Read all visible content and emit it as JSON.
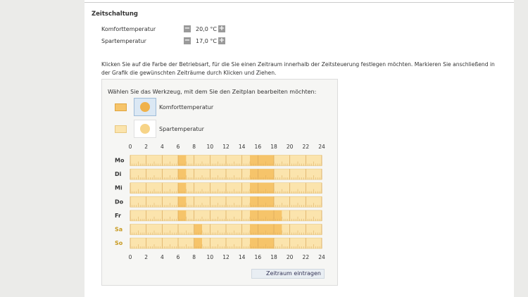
{
  "section_title": "Zeitschaltung",
  "settings": [
    {
      "label": "Komforttemperatur",
      "value": "20,0 °C"
    },
    {
      "label": "Spartemperatur",
      "value": "17,0 °C"
    }
  ],
  "instructions": "Klicken Sie auf die Farbe der Betriebsart, für die Sie einen Zeitraum innerhalb der Zeitsteuerung festlegen möchten. Markieren Sie anschließend in der Grafik die gewünschten Zeiträume durch Klicken und Ziehen.",
  "tool_prompt": "Wählen Sie das Werkzeug, mit dem Sie den Zeitplan bearbeiten möchten:",
  "tools": [
    "Komforttemperatur",
    "Spartemperatur"
  ],
  "schedule": {
    "hours": [
      0,
      2,
      4,
      6,
      8,
      10,
      12,
      14,
      16,
      18,
      20,
      22,
      24
    ],
    "days": [
      {
        "name": "Mo",
        "comfort": [
          [
            6,
            7
          ],
          [
            15,
            18
          ]
        ]
      },
      {
        "name": "Di",
        "comfort": [
          [
            6,
            7
          ],
          [
            15,
            18
          ]
        ]
      },
      {
        "name": "Mi",
        "comfort": [
          [
            6,
            7
          ],
          [
            15,
            18
          ]
        ]
      },
      {
        "name": "Do",
        "comfort": [
          [
            6,
            7
          ],
          [
            15,
            18
          ]
        ]
      },
      {
        "name": "Fr",
        "comfort": [
          [
            6,
            7
          ],
          [
            15,
            19
          ]
        ]
      },
      {
        "name": "Sa",
        "comfort": [
          [
            8,
            9
          ],
          [
            15,
            19
          ]
        ]
      },
      {
        "name": "So",
        "comfort": [
          [
            8,
            9
          ],
          [
            15,
            18
          ]
        ]
      }
    ]
  },
  "button": "Zeitraum eintragen"
}
